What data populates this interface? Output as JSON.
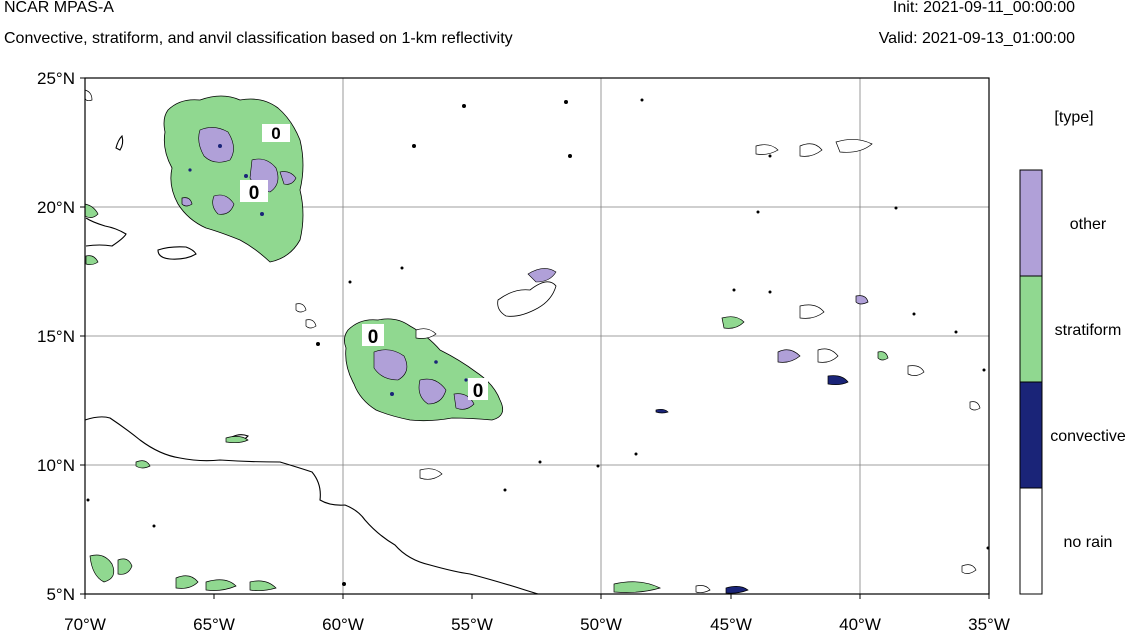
{
  "header": {
    "title": "NCAR MPAS-A",
    "subtitle": "Convective, stratiform, and anvil classification based on 1-km reflectivity",
    "init": "Init: 2021-09-11_00:00:00",
    "valid": "Valid: 2021-09-13_01:00:00"
  },
  "map": {
    "lat_ticks": [
      "25°N",
      "20°N",
      "15°N",
      "10°N",
      "5°N"
    ],
    "lon_ticks": [
      "70°W",
      "65°W",
      "60°W",
      "55°W",
      "50°W",
      "45°W",
      "40°W",
      "35°W"
    ],
    "lat_range": [
      5,
      25
    ],
    "lon_range": [
      -70,
      -35
    ],
    "gridlines": true,
    "contour_labels": [
      "0",
      "0",
      "0",
      "0"
    ],
    "colors": {
      "coastline": "#000000",
      "grid": "#7f7f7f",
      "stratiform": "#90d890",
      "other": "#b0a0d8",
      "convective": "#1a2478"
    }
  },
  "legend": {
    "title": "[type]",
    "items": [
      {
        "label": "other",
        "color": "#b0a0d8"
      },
      {
        "label": "stratiform",
        "color": "#90d890"
      },
      {
        "label": "convective",
        "color": "#1a2478"
      },
      {
        "label": "no rain",
        "color": "#ffffff"
      }
    ]
  }
}
